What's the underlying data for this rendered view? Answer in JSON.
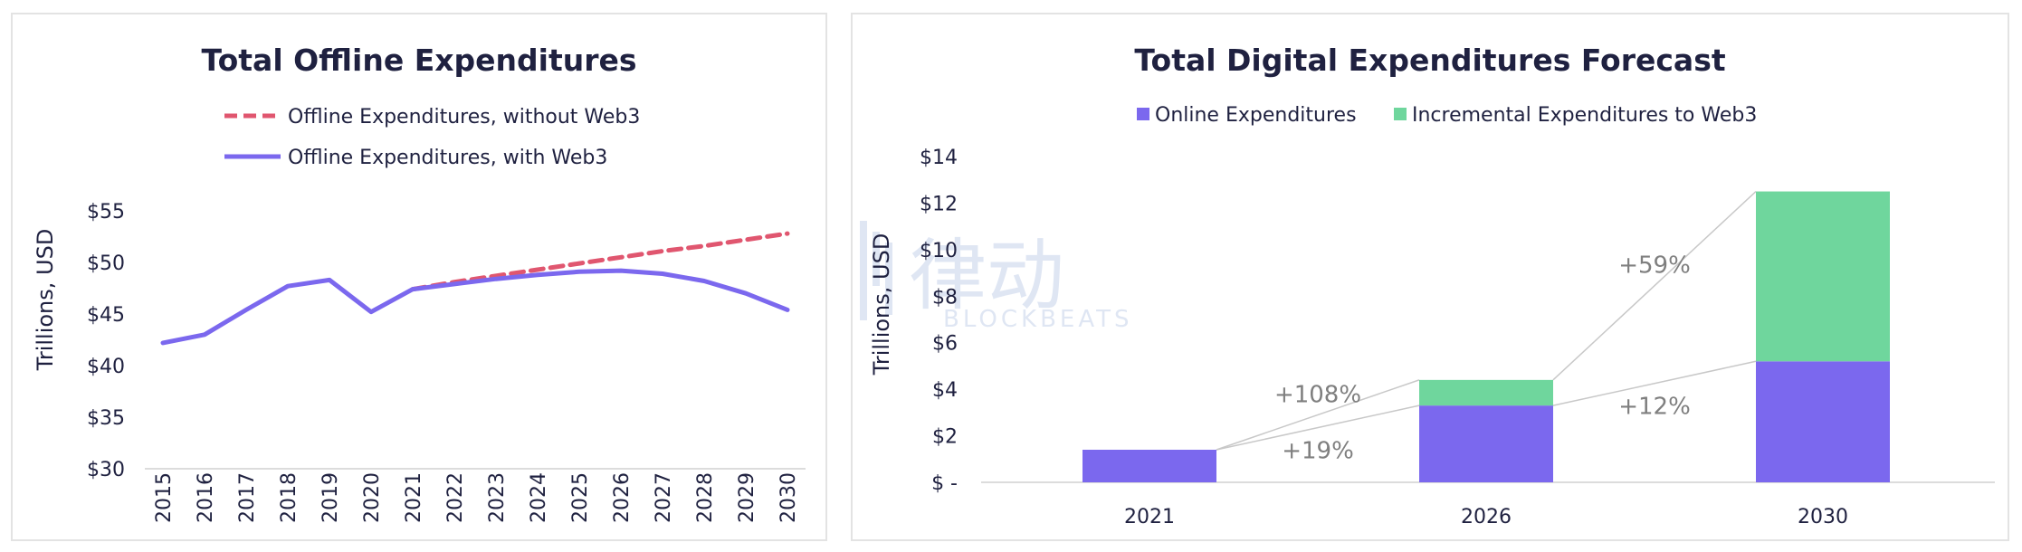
{
  "chart_data": [
    {
      "type": "line",
      "title": "Total Offline Expenditures",
      "ylabel": "Trillions, USD",
      "xlabel": "",
      "ylim": [
        30,
        55
      ],
      "yticks": [
        "$55",
        "$50",
        "$45",
        "$40",
        "$35",
        "$30"
      ],
      "ytick_values": [
        55,
        50,
        45,
        40,
        35,
        30
      ],
      "x": [
        "2015",
        "2016",
        "2017",
        "2018",
        "2019",
        "2020",
        "2021",
        "2022",
        "2023",
        "2024",
        "2025",
        "2026",
        "2027",
        "2028",
        "2029",
        "2030"
      ],
      "legend_placement": "top",
      "grid": false,
      "series": [
        {
          "name": "Offline Expenditures, without Web3",
          "color": "#e0566f",
          "style": "dashed",
          "values": [
            null,
            null,
            null,
            null,
            null,
            null,
            47.4,
            48.1,
            48.7,
            49.3,
            49.9,
            50.5,
            51.1,
            51.6,
            52.2,
            52.8
          ]
        },
        {
          "name": "Offline Expenditures, with Web3",
          "color": "#7b68ee",
          "style": "solid",
          "values": [
            42.2,
            43.0,
            45.4,
            47.7,
            48.3,
            45.2,
            47.4,
            47.9,
            48.4,
            48.8,
            49.1,
            49.2,
            48.9,
            48.2,
            47.0,
            45.4
          ]
        }
      ]
    },
    {
      "type": "bar",
      "stacked": true,
      "title": "Total Digital Expenditures Forecast",
      "ylabel": "Trillions, USD",
      "xlabel": "",
      "ylim": [
        0,
        14
      ],
      "yticks": [
        "$14",
        "$12",
        "$10",
        "$8",
        "$6",
        "$4",
        "$2",
        "$ -"
      ],
      "ytick_values": [
        14,
        12,
        10,
        8,
        6,
        4,
        2,
        0
      ],
      "categories": [
        "2021",
        "2026",
        "2030"
      ],
      "legend_placement": "top",
      "grid": false,
      "series": [
        {
          "name": "Online Expenditures",
          "color": "#7b68ee",
          "values": [
            1.4,
            3.3,
            5.2
          ]
        },
        {
          "name": "Incremental Expenditures to Web3",
          "color": "#6fd69d",
          "values": [
            0,
            1.1,
            7.3
          ]
        }
      ],
      "annotations": [
        {
          "text": "+108%",
          "from": "2021",
          "to": "2026",
          "connects": "total"
        },
        {
          "text": "+19%",
          "from": "2021",
          "to": "2026",
          "connects": "online"
        },
        {
          "text": "+59%",
          "from": "2026",
          "to": "2030",
          "connects": "total"
        },
        {
          "text": "+12%",
          "from": "2026",
          "to": "2030",
          "connects": "online"
        }
      ]
    }
  ],
  "watermark": {
    "cn": "律动",
    "en": "BLOCKBEATS"
  }
}
